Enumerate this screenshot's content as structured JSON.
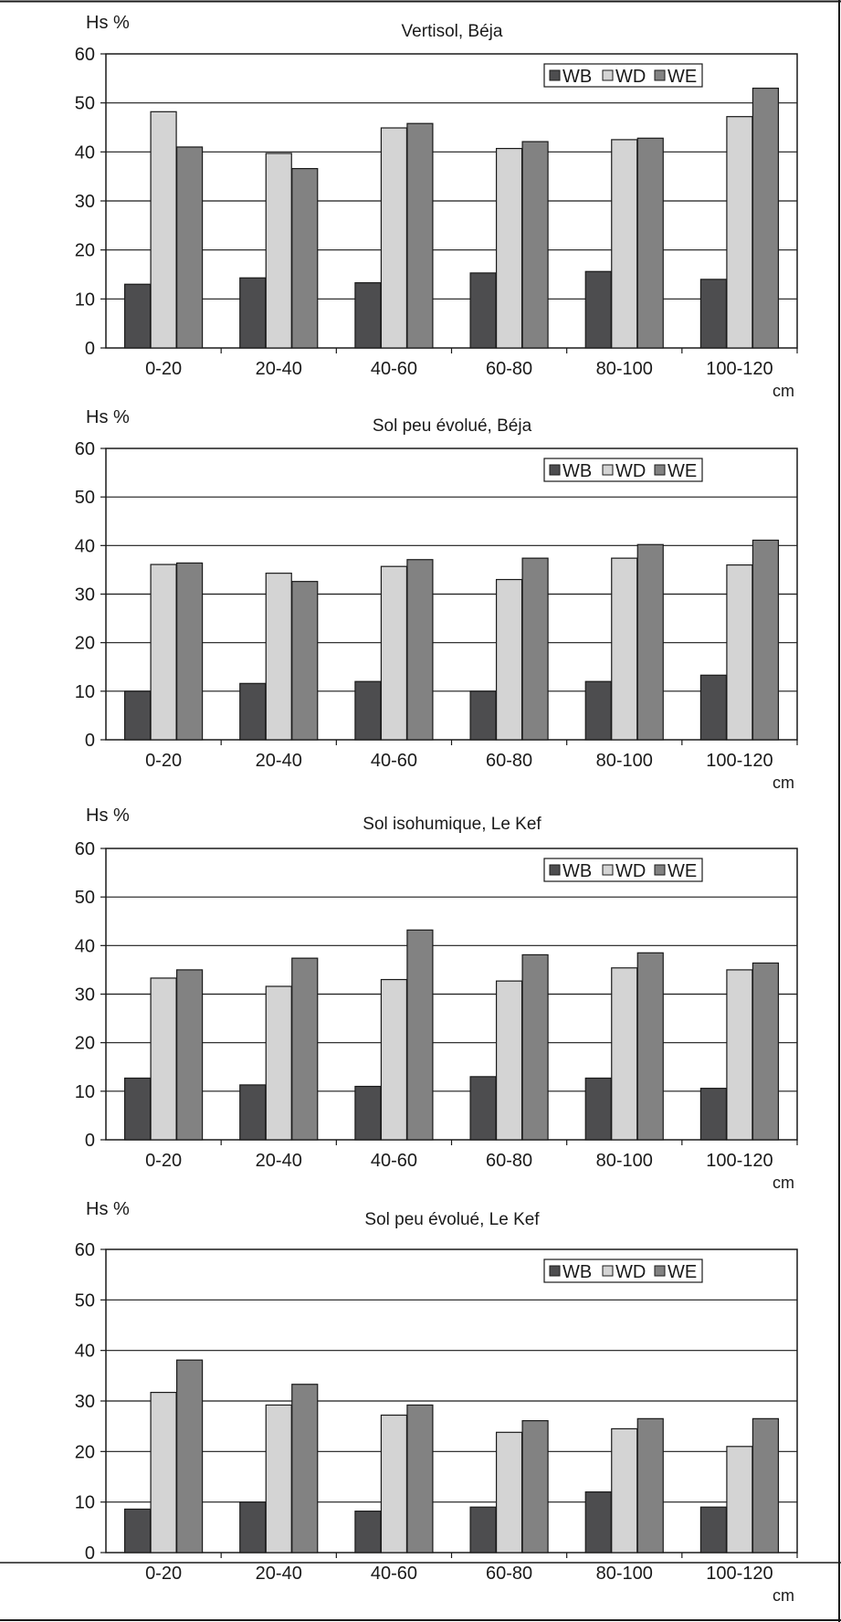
{
  "series_colors": {
    "WB": "#4d4d4f",
    "WD": "#d4d4d4",
    "WE": "#828282"
  },
  "chart_data": [
    {
      "type": "bar",
      "title": "Vertisol, Béja",
      "ylabel": "Hs %",
      "xunit": "cm",
      "categories": [
        "0-20",
        "20-40",
        "40-60",
        "60-80",
        "80-100",
        "100-120"
      ],
      "yticks": [
        0,
        10,
        20,
        30,
        40,
        50,
        60
      ],
      "ylim": [
        0,
        60
      ],
      "grid": true,
      "legend_position": "top-right",
      "series": [
        {
          "name": "WB",
          "values": [
            13,
            14.3,
            13.3,
            15.3,
            15.6,
            14
          ]
        },
        {
          "name": "WD",
          "values": [
            48.2,
            39.7,
            44.9,
            40.7,
            42.5,
            47.2
          ]
        },
        {
          "name": "WE",
          "values": [
            41,
            36.6,
            45.8,
            42.1,
            42.8,
            53
          ]
        }
      ]
    },
    {
      "type": "bar",
      "title": "Sol peu évolué, Béja",
      "ylabel": "Hs %",
      "xunit": "cm",
      "categories": [
        "0-20",
        "20-40",
        "40-60",
        "60-80",
        "80-100",
        "100-120"
      ],
      "yticks": [
        0,
        10,
        20,
        30,
        40,
        50,
        60
      ],
      "ylim": [
        0,
        60
      ],
      "grid": true,
      "legend_position": "top-right",
      "series": [
        {
          "name": "WB",
          "values": [
            10,
            11.6,
            12,
            10,
            12,
            13.3
          ]
        },
        {
          "name": "WD",
          "values": [
            36.1,
            34.3,
            35.7,
            33,
            37.4,
            36
          ]
        },
        {
          "name": "WE",
          "values": [
            36.4,
            32.6,
            37.1,
            37.4,
            40.2,
            41.1
          ]
        }
      ]
    },
    {
      "type": "bar",
      "title": "Sol isohumique, Le Kef",
      "ylabel": "Hs %",
      "xunit": "cm",
      "categories": [
        "0-20",
        "20-40",
        "40-60",
        "60-80",
        "80-100",
        "100-120"
      ],
      "yticks": [
        0,
        10,
        20,
        30,
        40,
        50,
        60
      ],
      "ylim": [
        0,
        60
      ],
      "grid": true,
      "legend_position": "top-right",
      "series": [
        {
          "name": "WB",
          "values": [
            12.7,
            11.3,
            11,
            13,
            12.7,
            10.6
          ]
        },
        {
          "name": "WD",
          "values": [
            33.3,
            31.6,
            33,
            32.7,
            35.4,
            35
          ]
        },
        {
          "name": "WE",
          "values": [
            35,
            37.4,
            43.2,
            38.1,
            38.5,
            36.4
          ]
        }
      ]
    },
    {
      "type": "bar",
      "title": "Sol peu évolué, Le Kef",
      "ylabel": "Hs %",
      "xunit": "cm",
      "categories": [
        "0-20",
        "20-40",
        "40-60",
        "60-80",
        "80-100",
        "100-120"
      ],
      "yticks": [
        0,
        10,
        20,
        30,
        40,
        50,
        60
      ],
      "ylim": [
        0,
        60
      ],
      "grid": true,
      "legend_position": "top-right",
      "series": [
        {
          "name": "WB",
          "values": [
            8.6,
            10,
            8.2,
            9,
            12,
            9
          ]
        },
        {
          "name": "WD",
          "values": [
            31.7,
            29.2,
            27.2,
            23.8,
            24.5,
            21
          ]
        },
        {
          "name": "WE",
          "values": [
            38.1,
            33.3,
            29.2,
            26.1,
            26.5,
            26.5
          ]
        }
      ]
    }
  ]
}
